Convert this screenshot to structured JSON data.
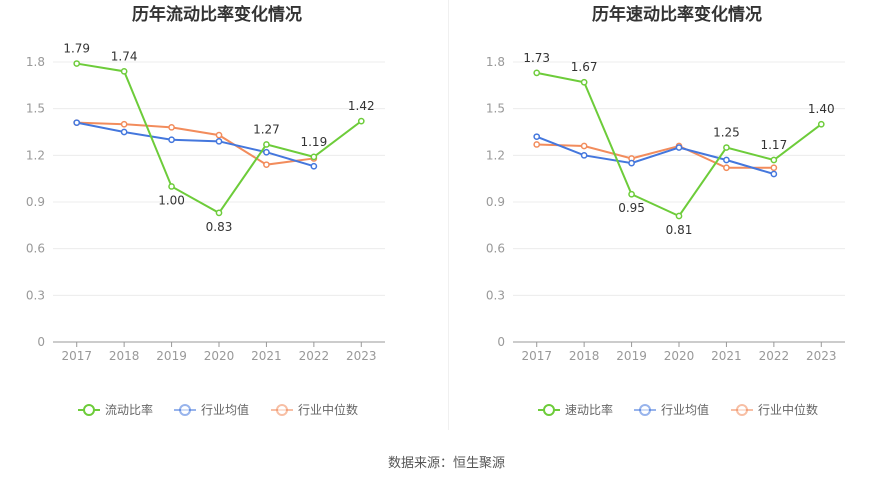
{
  "colors": {
    "primary": "#6dcc3a",
    "industry_avg": "#4477dd",
    "industry_median": "#f28c5c"
  },
  "source_note": "数据来源：恒生聚源",
  "chart_data": [
    {
      "type": "line",
      "title": "历年流动比率变化情况",
      "categories": [
        "2017",
        "2018",
        "2019",
        "2020",
        "2021",
        "2022",
        "2023"
      ],
      "ylim": [
        0,
        1.8
      ],
      "yticks": [
        "0",
        "0.3",
        "0.6",
        "0.9",
        "1.2",
        "1.5",
        "1.8"
      ],
      "grid": true,
      "legend_position": "bottom",
      "series": [
        {
          "name": "流动比率",
          "color": "#6dcc3a",
          "values": [
            1.79,
            1.74,
            1.0,
            0.83,
            1.27,
            1.19,
            1.42
          ],
          "labels": [
            "1.79",
            "1.74",
            "1.00",
            "0.83",
            "1.27",
            "1.19",
            "1.42"
          ]
        },
        {
          "name": "行业均值",
          "color": "#4477dd",
          "values": [
            1.41,
            1.35,
            1.3,
            1.29,
            1.22,
            1.13,
            null
          ]
        },
        {
          "name": "行业中位数",
          "color": "#f28c5c",
          "values": [
            1.41,
            1.4,
            1.38,
            1.33,
            1.14,
            1.18,
            null
          ]
        }
      ]
    },
    {
      "type": "line",
      "title": "历年速动比率变化情况",
      "categories": [
        "2017",
        "2018",
        "2019",
        "2020",
        "2021",
        "2022",
        "2023"
      ],
      "ylim": [
        0,
        1.8
      ],
      "yticks": [
        "0",
        "0.3",
        "0.6",
        "0.9",
        "1.2",
        "1.5",
        "1.8"
      ],
      "grid": true,
      "legend_position": "bottom",
      "series": [
        {
          "name": "速动比率",
          "color": "#6dcc3a",
          "values": [
            1.73,
            1.67,
            0.95,
            0.81,
            1.25,
            1.17,
            1.4
          ],
          "labels": [
            "1.73",
            "1.67",
            "0.95",
            "0.81",
            "1.25",
            "1.17",
            "1.40"
          ]
        },
        {
          "name": "行业均值",
          "color": "#4477dd",
          "values": [
            1.32,
            1.2,
            1.15,
            1.25,
            1.17,
            1.08,
            null
          ]
        },
        {
          "name": "行业中位数",
          "color": "#f28c5c",
          "values": [
            1.27,
            1.26,
            1.18,
            1.26,
            1.12,
            1.12,
            null
          ]
        }
      ]
    }
  ]
}
